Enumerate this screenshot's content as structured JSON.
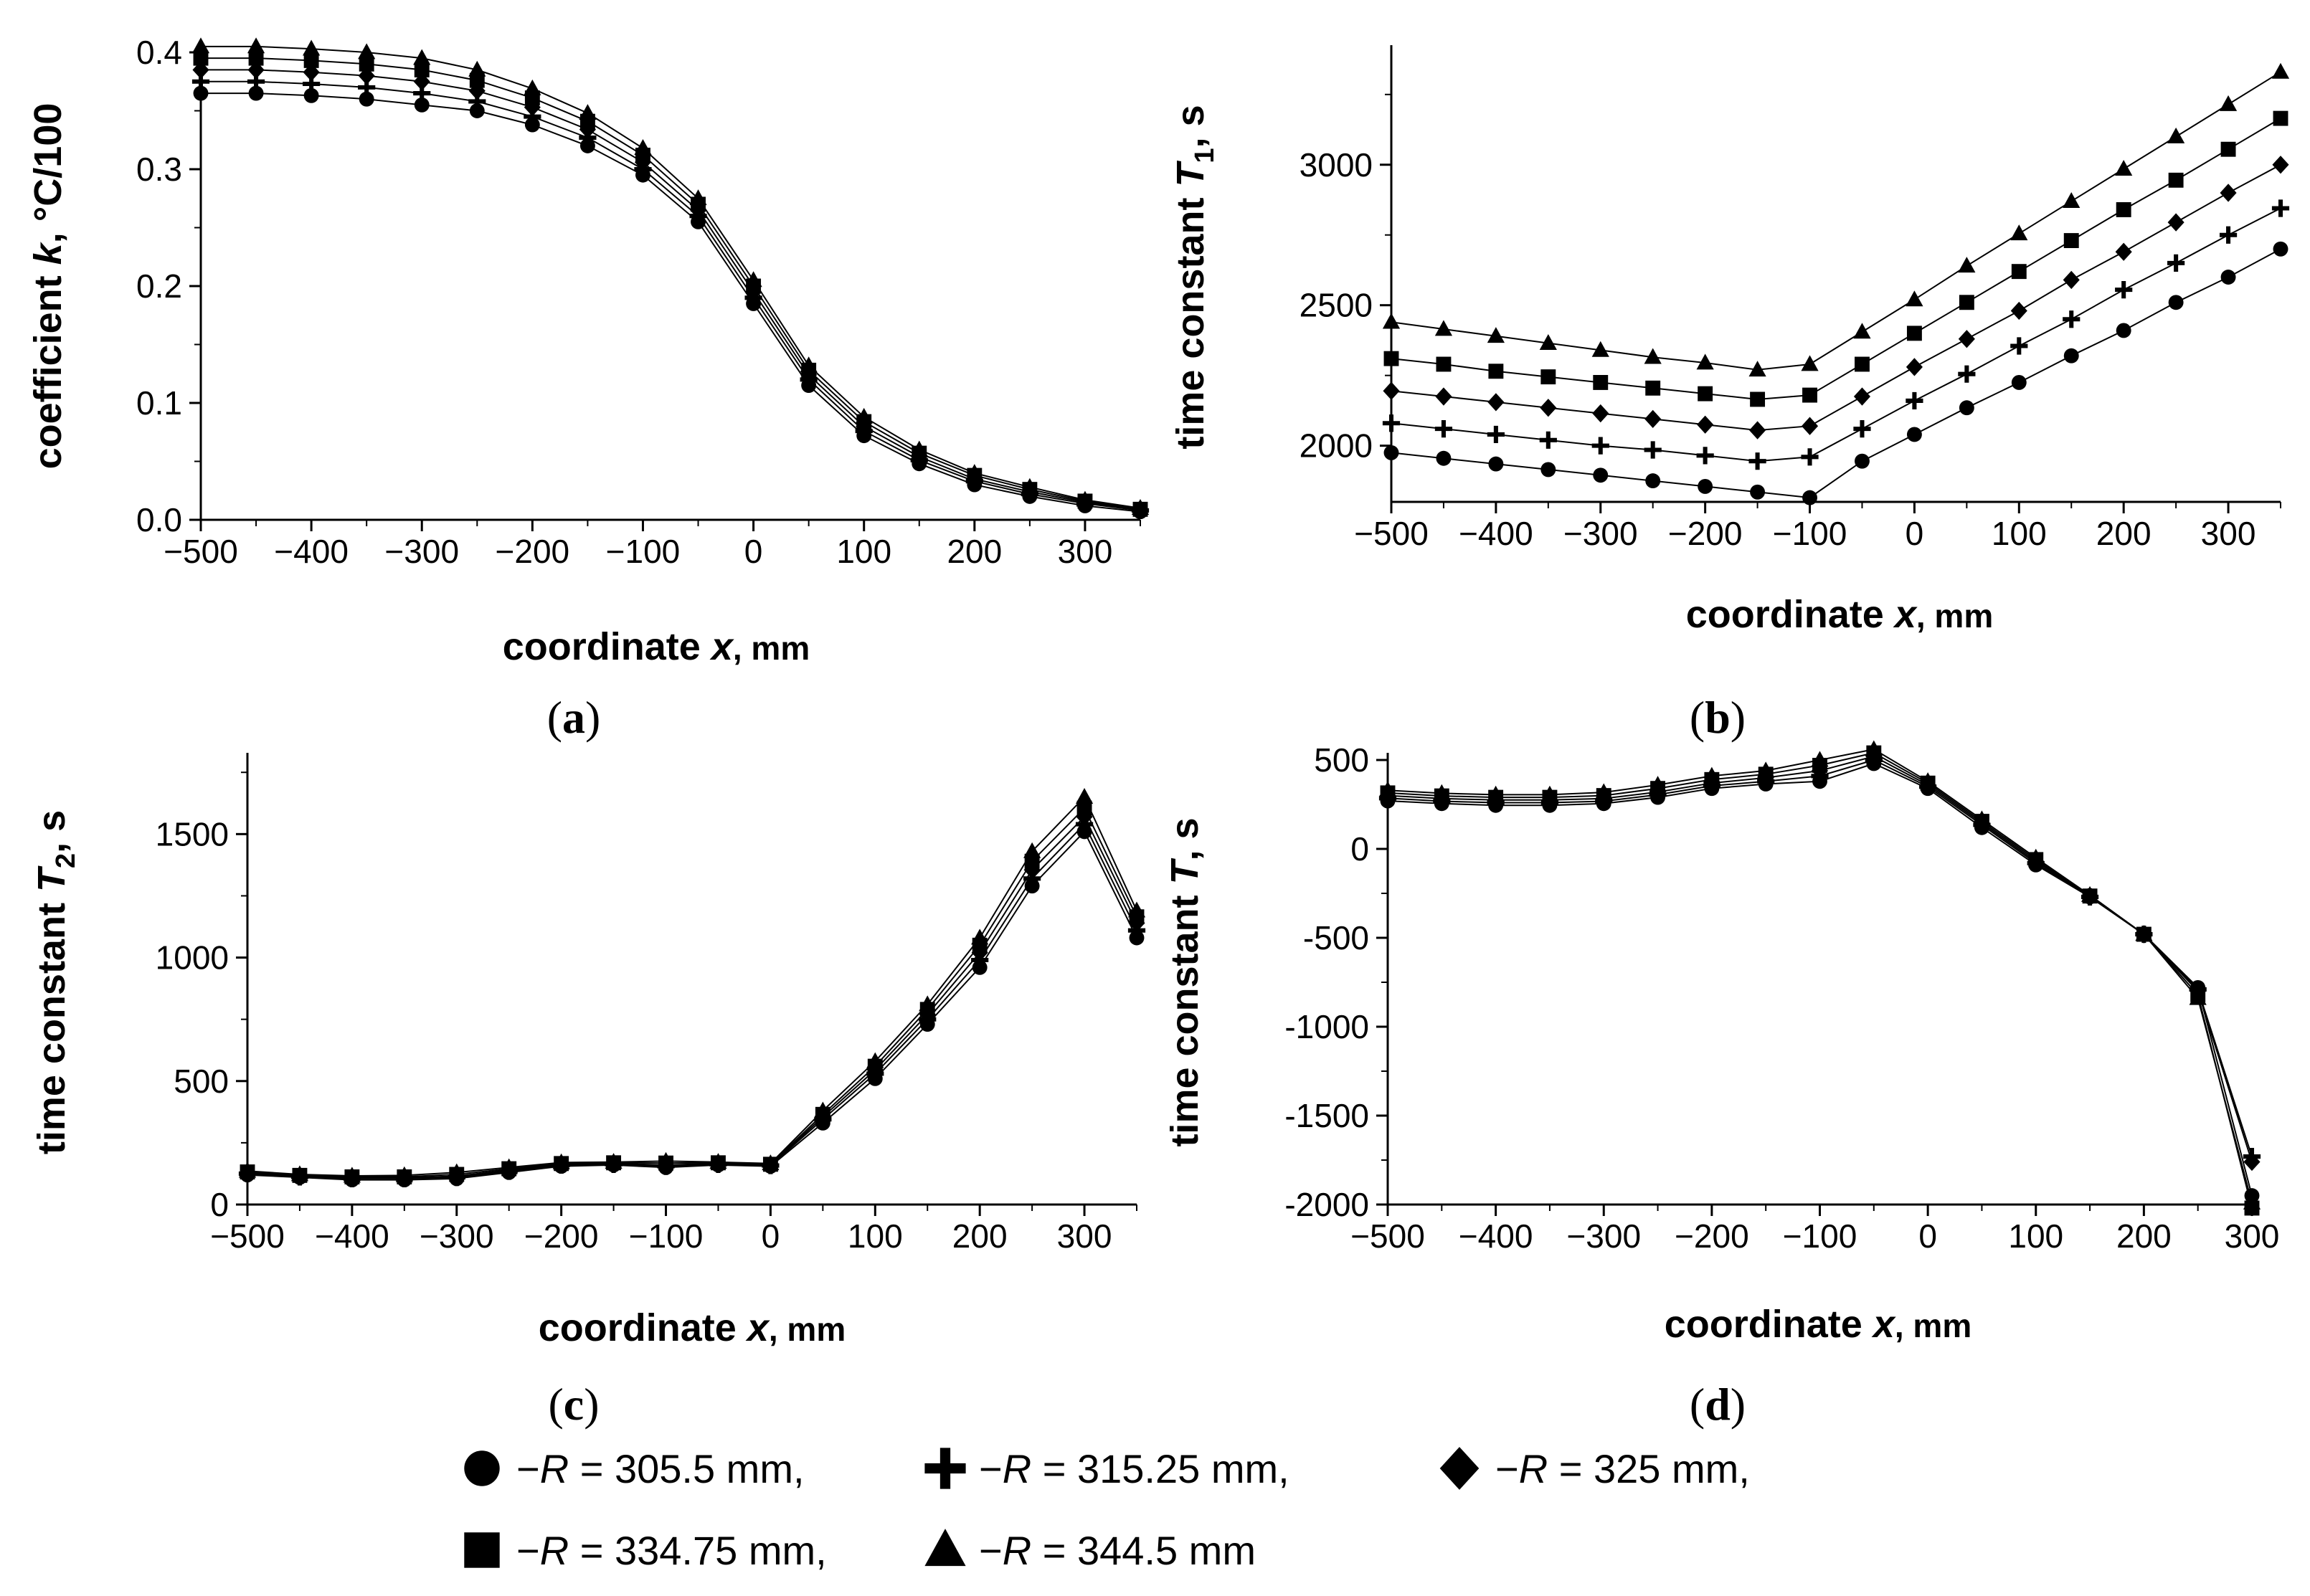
{
  "colors": {
    "foreground": "#000000",
    "background": "#ffffff"
  },
  "x_values": [
    -500,
    -450,
    -400,
    -350,
    -300,
    -250,
    -200,
    -150,
    -100,
    -50,
    0,
    50,
    100,
    150,
    200,
    250,
    300,
    350
  ],
  "series_meta": [
    {
      "marker": "circle"
    },
    {
      "marker": "plus"
    },
    {
      "marker": "diamond"
    },
    {
      "marker": "square"
    },
    {
      "marker": "triangle"
    }
  ],
  "legend": {
    "entries": [
      {
        "marker": "circle",
        "prefix": "−",
        "var": "R",
        "suffix": " = 305.5 mm,"
      },
      {
        "marker": "plus",
        "prefix": "−",
        "var": "R",
        "suffix": " = 315.25 mm,"
      },
      {
        "marker": "diamond",
        "prefix": "−",
        "var": "R",
        "suffix": " = 325 mm,"
      },
      {
        "marker": "square",
        "prefix": "−",
        "var": "R",
        "suffix": " = 334.75 mm,"
      },
      {
        "marker": "triangle",
        "prefix": "−",
        "var": "R",
        "suffix": " = 344.5 mm"
      }
    ]
  },
  "chart_data": [
    {
      "type": "line",
      "panel_label": "(a)",
      "xlabel": {
        "main": "coordinate ",
        "var": "x",
        "sub": "",
        "suffix": ", mm"
      },
      "ylabel": {
        "main": "coefficient ",
        "var": "k",
        "sub": "",
        "suffix": ", °C/100"
      },
      "xlim": [
        -500,
        350
      ],
      "ylim": [
        0,
        0.4
      ],
      "xticks": [
        -500,
        -400,
        -300,
        -200,
        -100,
        0,
        100,
        200,
        300
      ],
      "xtick_labels": [
        "−500",
        "−400",
        "−300",
        "−200",
        "−100",
        "0",
        "100",
        "200",
        "300"
      ],
      "yticks": [
        0,
        0.1,
        0.2,
        0.3,
        0.4
      ],
      "ytick_labels": [
        "0.0",
        "0.1",
        "0.2",
        "0.3",
        "0.4"
      ],
      "x": [
        -500,
        -450,
        -400,
        -350,
        -300,
        -250,
        -200,
        -150,
        -100,
        -50,
        0,
        50,
        100,
        150,
        200,
        250,
        300,
        350
      ],
      "series": [
        {
          "name": "−R = 305.5 mm",
          "values": [
            0.365,
            0.365,
            0.363,
            0.36,
            0.355,
            0.35,
            0.338,
            0.32,
            0.295,
            0.255,
            0.185,
            0.115,
            0.072,
            0.048,
            0.03,
            0.02,
            0.012,
            0.007
          ]
        },
        {
          "name": "−R = 315.25 mm",
          "values": [
            0.375,
            0.375,
            0.373,
            0.37,
            0.365,
            0.358,
            0.345,
            0.327,
            0.3,
            0.26,
            0.19,
            0.12,
            0.076,
            0.051,
            0.033,
            0.022,
            0.014,
            0.008
          ]
        },
        {
          "name": "−R = 325 mm",
          "values": [
            0.385,
            0.385,
            0.383,
            0.38,
            0.375,
            0.367,
            0.353,
            0.334,
            0.306,
            0.265,
            0.195,
            0.124,
            0.08,
            0.054,
            0.035,
            0.024,
            0.015,
            0.008
          ]
        },
        {
          "name": "−R = 334.75 mm",
          "values": [
            0.395,
            0.395,
            0.393,
            0.39,
            0.385,
            0.376,
            0.361,
            0.341,
            0.312,
            0.27,
            0.2,
            0.128,
            0.084,
            0.057,
            0.038,
            0.026,
            0.016,
            0.009
          ]
        },
        {
          "name": "−R = 344.5 mm",
          "values": [
            0.405,
            0.405,
            0.403,
            0.4,
            0.395,
            0.385,
            0.369,
            0.348,
            0.318,
            0.275,
            0.205,
            0.132,
            0.088,
            0.06,
            0.04,
            0.028,
            0.017,
            0.01
          ]
        }
      ]
    },
    {
      "type": "line",
      "panel_label": "(b)",
      "xlabel": {
        "main": "coordinate ",
        "var": "x",
        "sub": "",
        "suffix": ", mm"
      },
      "ylabel": {
        "main": "time constant ",
        "var": "T",
        "sub": "1",
        "suffix": ", s"
      },
      "xlim": [
        -500,
        350
      ],
      "ylim": [
        1800,
        3400
      ],
      "xticks": [
        -500,
        -400,
        -300,
        -200,
        -100,
        0,
        100,
        200,
        300
      ],
      "xtick_labels": [
        "−500",
        "−400",
        "−300",
        "−200",
        "−100",
        "0",
        "100",
        "200",
        "300"
      ],
      "yticks": [
        2000,
        2500,
        3000
      ],
      "ytick_labels": [
        "2000",
        "2500",
        "3000"
      ],
      "x": [
        -500,
        -450,
        -400,
        -350,
        -300,
        -250,
        -200,
        -150,
        -100,
        -50,
        0,
        50,
        100,
        150,
        200,
        250,
        300,
        350
      ],
      "series": [
        {
          "name": "−R = 305.5 mm",
          "values": [
            1975,
            1955,
            1935,
            1915,
            1895,
            1875,
            1855,
            1835,
            1815,
            1945,
            2040,
            2135,
            2225,
            2320,
            2410,
            2510,
            2600,
            2700
          ]
        },
        {
          "name": "−R = 315.25 mm",
          "values": [
            2080,
            2060,
            2040,
            2020,
            2000,
            1985,
            1965,
            1945,
            1960,
            2060,
            2160,
            2255,
            2355,
            2450,
            2555,
            2650,
            2750,
            2845
          ]
        },
        {
          "name": "−R = 325 mm",
          "values": [
            2195,
            2175,
            2155,
            2135,
            2115,
            2095,
            2075,
            2055,
            2070,
            2175,
            2280,
            2380,
            2480,
            2590,
            2690,
            2795,
            2900,
            3000
          ]
        },
        {
          "name": "−R = 334.75 mm",
          "values": [
            2310,
            2290,
            2265,
            2245,
            2225,
            2205,
            2185,
            2165,
            2180,
            2290,
            2400,
            2510,
            2620,
            2730,
            2840,
            2945,
            3055,
            3165
          ]
        },
        {
          "name": "−R = 344.5 mm",
          "values": [
            2440,
            2415,
            2390,
            2365,
            2340,
            2315,
            2295,
            2270,
            2290,
            2405,
            2520,
            2640,
            2755,
            2870,
            2985,
            3100,
            3215,
            3330
          ]
        }
      ]
    },
    {
      "type": "line",
      "panel_label": "(c)",
      "xlabel": {
        "main": "coordinate ",
        "var": "x",
        "sub": "",
        "suffix": ", mm"
      },
      "ylabel": {
        "main": "time constant ",
        "var": "T",
        "sub": "2",
        "suffix": ", s"
      },
      "xlim": [
        -500,
        350
      ],
      "ylim": [
        0,
        1800
      ],
      "xticks": [
        -500,
        -400,
        -300,
        -200,
        -100,
        0,
        100,
        200,
        300
      ],
      "xtick_labels": [
        "−500",
        "−400",
        "−300",
        "−200",
        "−100",
        "0",
        "100",
        "200",
        "300"
      ],
      "yticks": [
        0,
        500,
        1000,
        1500
      ],
      "ytick_labels": [
        "0",
        "500",
        "1000",
        "1500"
      ],
      "x": [
        -500,
        -450,
        -400,
        -350,
        -300,
        -250,
        -200,
        -150,
        -100,
        -50,
        0,
        50,
        100,
        150,
        200,
        250,
        300,
        350
      ],
      "series": [
        {
          "name": "−R = 305.5 mm",
          "values": [
            120,
            110,
            100,
            100,
            105,
            130,
            155,
            160,
            150,
            160,
            155,
            330,
            510,
            730,
            960,
            1290,
            1510,
            1080
          ]
        },
        {
          "name": "−R = 315.25 mm",
          "values": [
            125,
            112,
            105,
            105,
            110,
            135,
            160,
            163,
            155,
            163,
            158,
            345,
            530,
            750,
            990,
            1320,
            1540,
            1110
          ]
        },
        {
          "name": "−R = 325 mm",
          "values": [
            128,
            115,
            108,
            108,
            115,
            140,
            163,
            166,
            160,
            166,
            160,
            355,
            545,
            770,
            1020,
            1355,
            1570,
            1140
          ]
        },
        {
          "name": "−R = 334.75 mm",
          "values": [
            132,
            118,
            112,
            112,
            122,
            145,
            166,
            169,
            168,
            169,
            163,
            365,
            560,
            790,
            1050,
            1390,
            1605,
            1165
          ]
        },
        {
          "name": "−R = 344.5 mm",
          "values": [
            136,
            122,
            116,
            118,
            130,
            150,
            170,
            172,
            176,
            172,
            166,
            380,
            580,
            810,
            1080,
            1430,
            1650,
            1190
          ]
        }
      ]
    },
    {
      "type": "line",
      "panel_label": "(d)",
      "xlabel": {
        "main": "coordinate ",
        "var": "x",
        "sub": "",
        "suffix": ", mm"
      },
      "ylabel": {
        "main": "time constant ",
        "var": "T",
        "sub": "",
        "suffix": ", s"
      },
      "xlim": [
        -500,
        300
      ],
      "ylim": [
        -2000,
        500
      ],
      "xticks": [
        -500,
        -400,
        -300,
        -200,
        -100,
        0,
        100,
        200,
        300
      ],
      "xtick_labels": [
        "−500",
        "−400",
        "−300",
        "−200",
        "−100",
        "0",
        "100",
        "200",
        "300"
      ],
      "yticks": [
        500,
        0,
        -500,
        -1000,
        -1500,
        -2000
      ],
      "ytick_labels": [
        "500",
        "0",
        "-500",
        "-1000",
        "-1500",
        "-2000"
      ],
      "x": [
        -500,
        -450,
        -400,
        -350,
        -300,
        -250,
        -200,
        -150,
        -100,
        -50,
        0,
        50,
        100,
        150,
        200,
        250,
        300
      ],
      "series": [
        {
          "name": "−R = 305.5 mm",
          "values": [
            270,
            255,
            245,
            245,
            255,
            290,
            340,
            365,
            380,
            480,
            340,
            120,
            -90,
            -270,
            -480,
            -780,
            -1950
          ]
        },
        {
          "name": "−R = 315.25 mm",
          "values": [
            285,
            268,
            260,
            260,
            268,
            305,
            355,
            380,
            410,
            500,
            350,
            135,
            -80,
            -270,
            -480,
            -790,
            -1730
          ]
        },
        {
          "name": "−R = 325 mm",
          "values": [
            300,
            283,
            275,
            275,
            283,
            320,
            370,
            400,
            440,
            520,
            360,
            145,
            -70,
            -265,
            -480,
            -800,
            -1760
          ]
        },
        {
          "name": "−R = 334.75 mm",
          "values": [
            315,
            298,
            290,
            290,
            300,
            340,
            390,
            420,
            470,
            540,
            370,
            155,
            -60,
            -265,
            -480,
            -820,
            -2020
          ]
        },
        {
          "name": "−R = 344.5 mm",
          "values": [
            330,
            313,
            305,
            305,
            318,
            360,
            410,
            440,
            500,
            560,
            380,
            165,
            -50,
            -260,
            -480,
            -840,
            -1990
          ]
        }
      ]
    }
  ]
}
